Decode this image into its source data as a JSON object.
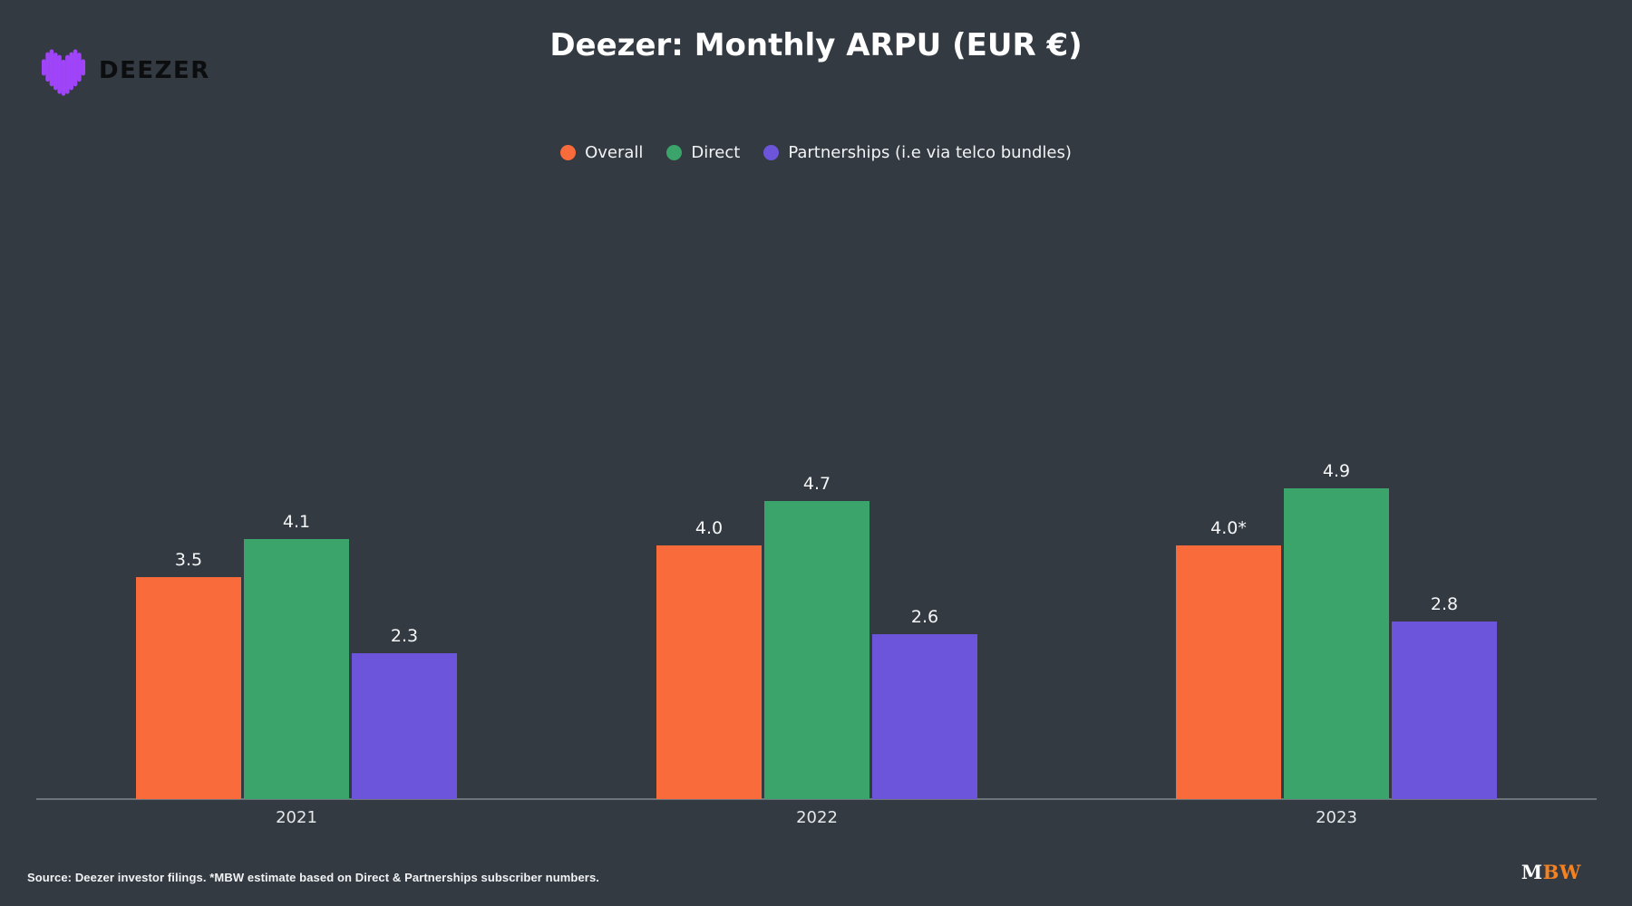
{
  "page": {
    "background": "#333a42"
  },
  "header": {
    "title": "Deezer: Monthly ARPU (EUR €)",
    "brand_wordmark": "DEEZER",
    "brand_heart_color": "#9f44f8"
  },
  "chart_data": {
    "type": "bar",
    "title": "Deezer: Monthly ARPU (EUR €)",
    "categories": [
      "2021",
      "2022",
      "2023"
    ],
    "series": [
      {
        "name": "Overall",
        "color": "#fa6b3c",
        "values": [
          3.5,
          4.0,
          4.0
        ],
        "labels": [
          "3.5",
          "4.0",
          "4.0*"
        ]
      },
      {
        "name": "Direct",
        "color": "#3aa46a",
        "values": [
          4.1,
          4.7,
          4.9
        ],
        "labels": [
          "4.1",
          "4.7",
          "4.9"
        ]
      },
      {
        "name": "Partnerships (i.e via telco bundles)",
        "color": "#6c55db",
        "values": [
          2.3,
          2.6,
          2.8
        ],
        "labels": [
          "2.3",
          "2.6",
          "2.8"
        ]
      }
    ],
    "ylim": [
      0,
      5
    ],
    "grid": false,
    "legend_position": "top-center",
    "axis_line_color": "#6e747b",
    "value_labels_shown": true
  },
  "footer": {
    "source_note": "Source: Deezer investor filings. *MBW estimate based on Direct & Partnerships subscriber numbers.",
    "mbw_logo": {
      "m": "M",
      "bw": "BW",
      "m_color": "#ffffff",
      "bw_color": "#f58220"
    }
  }
}
